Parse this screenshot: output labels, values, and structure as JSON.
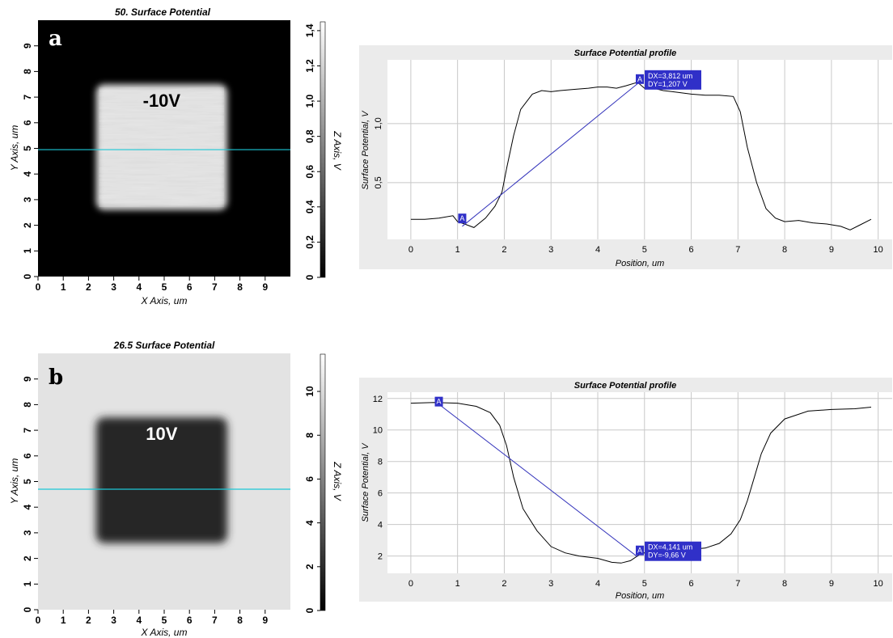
{
  "chart_data": [
    {
      "type": "heatmap",
      "panel_label": "a",
      "title": "50. Surface Potential",
      "xlabel": "X Axis, um",
      "ylabel": "Y Axis, um",
      "colorbar_label": "Z Axis, V",
      "x_ticks": [
        "0",
        "1",
        "2",
        "3",
        "4",
        "5",
        "6",
        "7",
        "8",
        "9"
      ],
      "y_ticks": [
        "0",
        "1",
        "2",
        "3",
        "4",
        "5",
        "6",
        "7",
        "8",
        "9"
      ],
      "colorbar_ticks": [
        "0",
        "0,2",
        "0,4",
        "0,6",
        "0,8",
        "1,0",
        "1,2",
        "1,4"
      ],
      "xlim": [
        0,
        10
      ],
      "ylim": [
        0,
        10
      ],
      "zlim": [
        0,
        1.45
      ],
      "square": {
        "x": [
          2.3,
          7.5
        ],
        "y": [
          2.6,
          7.5
        ]
      },
      "annotation": "-10V",
      "profile_line_y": 4.95,
      "background_value": 0.2,
      "square_value": 1.25,
      "colorbar_colors": [
        "#000000",
        "#ffffff"
      ]
    },
    {
      "type": "line",
      "title": "Surface Potential profile",
      "xlabel": "Position, um",
      "ylabel": "Surface Potential, V",
      "x_ticks": [
        "0",
        "1",
        "2",
        "3",
        "4",
        "5",
        "6",
        "7",
        "8",
        "9",
        "10"
      ],
      "y_ticks": [
        {
          "v": 0.5,
          "label": "0,5"
        },
        {
          "v": 1.0,
          "label": "1,0"
        }
      ],
      "xlim": [
        -0.5,
        10.3
      ],
      "ylim": [
        0.02,
        1.54
      ],
      "series": [
        {
          "x": [
            0,
            0.3,
            0.6,
            0.9,
            1.0,
            1.15,
            1.35,
            1.6,
            1.8,
            1.95,
            2.05,
            2.2,
            2.35,
            2.6,
            2.8,
            3.0,
            3.2,
            3.5,
            3.8,
            4.0,
            4.2,
            4.4,
            4.6,
            4.85,
            5.0,
            5.2,
            5.4,
            5.6,
            5.8,
            6.0,
            6.3,
            6.6,
            6.9,
            7.05,
            7.2,
            7.4,
            7.6,
            7.8,
            8.0,
            8.3,
            8.6,
            8.9,
            9.2,
            9.4,
            9.6,
            9.85
          ],
          "y": [
            0.19,
            0.19,
            0.2,
            0.22,
            0.17,
            0.15,
            0.12,
            0.2,
            0.3,
            0.42,
            0.62,
            0.9,
            1.12,
            1.25,
            1.28,
            1.27,
            1.28,
            1.29,
            1.3,
            1.31,
            1.31,
            1.3,
            1.32,
            1.35,
            1.3,
            1.3,
            1.28,
            1.27,
            1.26,
            1.25,
            1.24,
            1.24,
            1.23,
            1.1,
            0.8,
            0.5,
            0.28,
            0.2,
            0.17,
            0.18,
            0.16,
            0.15,
            0.13,
            0.1,
            0.14,
            0.19
          ]
        }
      ],
      "cursor_line": {
        "x1": 1.1,
        "y1": 0.13,
        "x2": 4.95,
        "y2": 1.37
      },
      "cursor_markers": [
        {
          "x": 1.1,
          "y": 0.19,
          "label": "A"
        },
        {
          "x": 4.9,
          "y": 1.37,
          "label": "A"
        }
      ],
      "readout": [
        "DX=3,812 um",
        "DY=1,207 V"
      ],
      "line_color": "#000000",
      "cursor_color": "#3333bb",
      "label_bg": "#3030c8"
    },
    {
      "type": "heatmap",
      "panel_label": "b",
      "title": "26.5 Surface Potential",
      "xlabel": "X Axis, um",
      "ylabel": "Y Axis, um",
      "colorbar_label": "Z Axis, V",
      "x_ticks": [
        "0",
        "1",
        "2",
        "3",
        "4",
        "5",
        "6",
        "7",
        "8",
        "9"
      ],
      "y_ticks": [
        "0",
        "1",
        "2",
        "3",
        "4",
        "5",
        "6",
        "7",
        "8",
        "9"
      ],
      "colorbar_ticks": [
        "0",
        "2",
        "4",
        "6",
        "8",
        "10"
      ],
      "xlim": [
        0,
        10
      ],
      "ylim": [
        0,
        10
      ],
      "zlim": [
        0,
        11.7
      ],
      "square": {
        "x": [
          2.3,
          7.5
        ],
        "y": [
          2.6,
          7.5
        ]
      },
      "annotation": "10V",
      "profile_line_y": 4.7,
      "background_value": 11.4,
      "square_value": 1.8,
      "colorbar_colors": [
        "#000000",
        "#ffffff"
      ]
    },
    {
      "type": "line",
      "title": "Surface Potential profile",
      "xlabel": "Position, um",
      "ylabel": "Surface Potential, V",
      "x_ticks": [
        "0",
        "1",
        "2",
        "3",
        "4",
        "5",
        "6",
        "7",
        "8",
        "9",
        "10"
      ],
      "y_ticks": [
        {
          "v": 2,
          "label": "2"
        },
        {
          "v": 4,
          "label": "4"
        },
        {
          "v": 6,
          "label": "6"
        },
        {
          "v": 8,
          "label": "8"
        },
        {
          "v": 10,
          "label": "10"
        },
        {
          "v": 12,
          "label": "12"
        }
      ],
      "xlim": [
        -0.5,
        10.3
      ],
      "ylim": [
        0.9,
        12.4
      ],
      "series": [
        {
          "x": [
            0,
            0.5,
            1.0,
            1.4,
            1.7,
            1.9,
            2.05,
            2.2,
            2.4,
            2.7,
            3.0,
            3.3,
            3.6,
            4.0,
            4.3,
            4.5,
            4.7,
            4.9,
            5.2,
            5.5,
            5.9,
            6.3,
            6.6,
            6.85,
            7.05,
            7.2,
            7.35,
            7.5,
            7.7,
            8.0,
            8.5,
            9.0,
            9.5,
            9.85
          ],
          "y": [
            11.7,
            11.75,
            11.7,
            11.5,
            11.1,
            10.3,
            9.0,
            7.0,
            5.0,
            3.6,
            2.6,
            2.2,
            2.0,
            1.85,
            1.6,
            1.55,
            1.7,
            2.1,
            2.4,
            2.4,
            2.4,
            2.5,
            2.8,
            3.4,
            4.3,
            5.5,
            7.0,
            8.5,
            9.8,
            10.7,
            11.2,
            11.3,
            11.35,
            11.45
          ]
        }
      ],
      "cursor_line": {
        "x1": 0.55,
        "y1": 11.75,
        "x2": 4.85,
        "y2": 1.95
      },
      "cursor_markers": [
        {
          "x": 0.6,
          "y": 11.75,
          "label": "A"
        },
        {
          "x": 4.9,
          "y": 2.3,
          "label": "A"
        }
      ],
      "readout": [
        "DX=4,141 um",
        "DY=-9,66 V"
      ],
      "line_color": "#000000",
      "cursor_color": "#3333bb",
      "label_bg": "#3030c8"
    }
  ]
}
